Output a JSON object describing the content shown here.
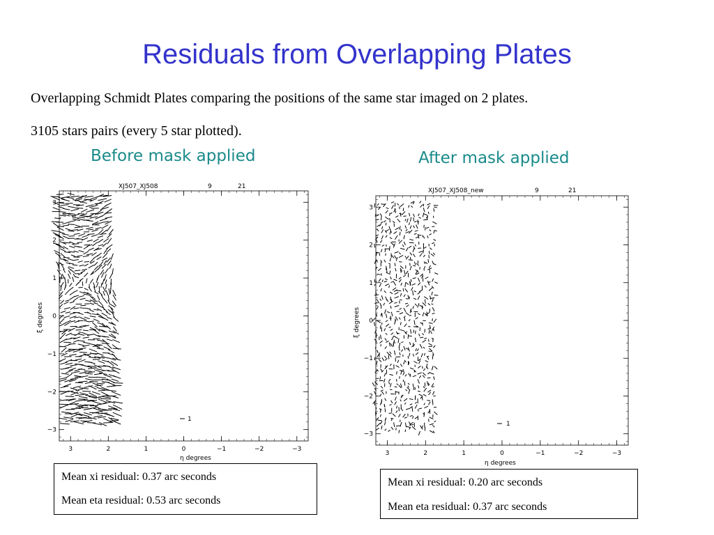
{
  "slide": {
    "title": "Residuals from Overlapping Plates",
    "description_line1": "Overlapping Schmidt Plates comparing the positions of the same star imaged on 2 plates.",
    "description_line2": "3105 stars pairs (every 5 star plotted)."
  },
  "panels": [
    {
      "heading": "Before mask applied",
      "plot_title": "XJ507_XJ508",
      "plot_num1": "9",
      "plot_num2": "21",
      "scale_label": "1",
      "stats": {
        "line1": "Mean xi residual: 0.37 arc seconds",
        "line2": "Mean eta residual: 0.53 arc seconds"
      }
    },
    {
      "heading": "After mask applied",
      "plot_title": "XJ507_XJ508_new",
      "plot_num1": "9",
      "plot_num2": "21",
      "scale_label": "1",
      "stats": {
        "line1": "Mean xi residual: 0.20 arc seconds",
        "line2": "Mean eta residual: 0.37 arc seconds"
      }
    }
  ],
  "chart_data": [
    {
      "type": "scatter",
      "subtype": "vector-field",
      "title": "XJ507_XJ508",
      "xlabel": "η degrees",
      "ylabel": "ξ degrees",
      "xlim": [
        3.3,
        -3.3
      ],
      "ylim": [
        -3.3,
        3.3
      ],
      "x_ticks": [
        "3",
        "2",
        "1",
        "0",
        "−1",
        "−2",
        "−3"
      ],
      "y_ticks": [
        "3",
        "2",
        "1",
        "0",
        "−1",
        "−2",
        "−3"
      ],
      "region": {
        "x": [
          1.9,
          3.3
        ],
        "y": [
          -2.8,
          3.2
        ]
      },
      "pattern": "swirl",
      "scale_arrow_label": "1"
    },
    {
      "type": "scatter",
      "subtype": "vector-field",
      "title": "XJ507_XJ508_new",
      "xlabel": "η degrees",
      "ylabel": "ξ degrees",
      "xlim": [
        3.3,
        -3.3
      ],
      "ylim": [
        -3.3,
        3.3
      ],
      "x_ticks": [
        "3",
        "2",
        "1",
        "0",
        "−1",
        "−2",
        "−3"
      ],
      "y_ticks": [
        "3",
        "2",
        "1",
        "0",
        "−1",
        "−2",
        "−3"
      ],
      "region": {
        "x": [
          1.8,
          3.3
        ],
        "y": [
          -2.9,
          3.1
        ]
      },
      "pattern": "random-small",
      "scale_arrow_label": "1"
    }
  ]
}
